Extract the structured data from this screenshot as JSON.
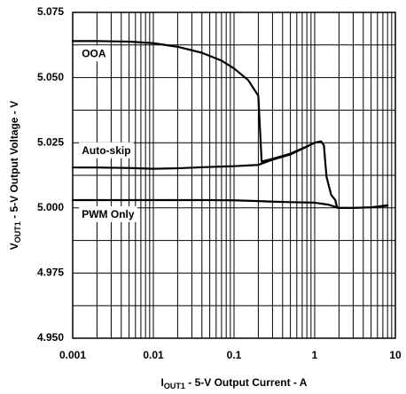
{
  "chart_data": {
    "type": "line",
    "x_scale": "log",
    "xlim": [
      0.001,
      10
    ],
    "ylim": [
      4.95,
      5.075
    ],
    "grid": true,
    "xlabel": "I_OUT1 - 5-V Output Current - A",
    "xlabel_parts": {
      "main": "I",
      "sub": "OUT1",
      "rest": " - 5-V Output Current - A"
    },
    "ylabel": "V_OUT1 - 5-V Output Voltage - V",
    "ylabel_parts": {
      "main": "V",
      "sub": "OUT1",
      "rest": " - 5-V Output Voltage - V"
    },
    "x_ticks": [
      {
        "value": 0.001,
        "label": "0.001"
      },
      {
        "value": 0.01,
        "label": "0.01"
      },
      {
        "value": 0.1,
        "label": "0.1"
      },
      {
        "value": 1,
        "label": "1"
      },
      {
        "value": 10,
        "label": "10"
      }
    ],
    "y_ticks": [
      {
        "value": 4.95,
        "label": "4.950"
      },
      {
        "value": 4.975,
        "label": "4.975"
      },
      {
        "value": 5.0,
        "label": "5.000"
      },
      {
        "value": 5.025,
        "label": "5.025"
      },
      {
        "value": 5.05,
        "label": "5.050"
      },
      {
        "value": 5.075,
        "label": "5.075"
      }
    ],
    "series": [
      {
        "name": "OOA",
        "x": [
          0.001,
          0.002,
          0.005,
          0.01,
          0.02,
          0.04,
          0.07,
          0.1,
          0.15,
          0.2,
          0.21,
          0.22,
          0.3,
          0.5,
          0.8,
          1.0,
          1.2
        ],
        "y": [
          5.064,
          5.064,
          5.0638,
          5.0632,
          5.0618,
          5.0595,
          5.0565,
          5.0535,
          5.049,
          5.043,
          5.03,
          5.0178,
          5.0188,
          5.0208,
          5.0236,
          5.025,
          5.0255
        ]
      },
      {
        "name": "Auto-skip",
        "x": [
          0.001,
          0.002,
          0.005,
          0.01,
          0.02,
          0.05,
          0.1,
          0.2,
          0.3,
          0.5,
          0.8,
          1.0,
          1.2,
          1.3,
          1.4,
          1.6,
          1.8,
          1.9,
          2.0,
          3.0,
          5.0,
          8.0
        ],
        "y": [
          5.0155,
          5.0155,
          5.0153,
          5.015,
          5.0152,
          5.0157,
          5.016,
          5.0165,
          5.0185,
          5.0205,
          5.0235,
          5.025,
          5.0255,
          5.024,
          5.012,
          5.005,
          5.003,
          5.0,
          5.0,
          5.0,
          5.0002,
          5.001
        ]
      },
      {
        "name": "PWM Only",
        "x": [
          0.001,
          0.01,
          0.05,
          0.1,
          0.2,
          0.3,
          0.5,
          1.0,
          1.5,
          1.8,
          2.0,
          3.0,
          5.0,
          8.0
        ],
        "y": [
          5.003,
          5.003,
          5.003,
          5.0029,
          5.0026,
          5.0024,
          5.0022,
          5.002,
          5.0012,
          5.0004,
          5.0,
          5.0,
          5.0002,
          5.0008
        ]
      }
    ],
    "annotations": [
      {
        "text": "OOA",
        "x": 0.0012,
        "y": 5.059
      },
      {
        "text": "Auto-skip",
        "x": 0.0012,
        "y": 5.0218
      },
      {
        "text": "PWM Only",
        "x": 0.0012,
        "y": 4.9973
      }
    ]
  }
}
